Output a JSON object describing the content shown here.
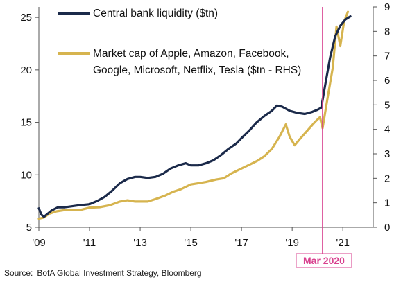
{
  "chart_data": {
    "type": "line",
    "x_axis": {
      "ticks": [
        "'09",
        "'11",
        "'13",
        "'15",
        "'17",
        "'19",
        "'21"
      ],
      "tick_years": [
        2009,
        2011,
        2013,
        2015,
        2017,
        2019,
        2021
      ],
      "range": [
        2009.0,
        2022.2
      ]
    },
    "y_left": {
      "ticks": [
        "5",
        "10",
        "15",
        "20",
        "25"
      ],
      "tick_values": [
        5,
        10,
        15,
        20,
        25
      ],
      "range": [
        5,
        26
      ]
    },
    "y_right": {
      "ticks": [
        "0",
        "1",
        "2",
        "3",
        "4",
        "5",
        "6",
        "7",
        "8",
        "9"
      ],
      "tick_values": [
        0,
        1,
        2,
        3,
        4,
        5,
        6,
        7,
        8,
        9
      ],
      "range": [
        0,
        9
      ]
    },
    "legend_lines": [
      "Central bank liquidity ($tn)",
      "Market cap of Apple, Amazon, Facebook,",
      "Google, Microsoft, Netflix, Tesla ($tn - RHS)"
    ],
    "series": [
      {
        "name": "Central bank liquidity ($tn)",
        "axis": "left",
        "color": "#1b2a4a",
        "x": [
          2009.0,
          2009.1,
          2009.2,
          2009.3,
          2009.5,
          2009.75,
          2010.0,
          2010.3,
          2010.6,
          2011.0,
          2011.3,
          2011.6,
          2011.9,
          2012.2,
          2012.5,
          2012.8,
          2013.0,
          2013.3,
          2013.6,
          2013.9,
          2014.2,
          2014.5,
          2014.8,
          2015.0,
          2015.3,
          2015.6,
          2015.9,
          2016.2,
          2016.5,
          2016.8,
          2017.0,
          2017.3,
          2017.6,
          2017.9,
          2018.2,
          2018.4,
          2018.6,
          2018.9,
          2019.2,
          2019.5,
          2019.8,
          2020.0,
          2020.15,
          2020.3,
          2020.5,
          2020.7,
          2020.9,
          2021.1,
          2021.3
        ],
        "values": [
          6.8,
          6.2,
          6.0,
          6.2,
          6.6,
          6.9,
          6.9,
          7.0,
          7.1,
          7.2,
          7.5,
          7.9,
          8.5,
          9.2,
          9.6,
          9.8,
          9.8,
          9.7,
          9.8,
          10.1,
          10.6,
          10.9,
          11.1,
          10.9,
          10.9,
          11.1,
          11.4,
          11.9,
          12.5,
          13.0,
          13.5,
          14.2,
          15.0,
          15.6,
          16.1,
          16.6,
          16.5,
          16.1,
          15.9,
          15.8,
          16.0,
          16.2,
          16.4,
          18.5,
          21.2,
          23.2,
          24.2,
          24.8,
          25.1
        ]
      },
      {
        "name": "Market cap of Apple, Amazon, Facebook, Google, Microsoft, Netflix, Tesla ($tn - RHS)",
        "axis": "right",
        "color": "#d6b44f",
        "x": [
          2009.0,
          2009.2,
          2009.4,
          2009.7,
          2010.0,
          2010.3,
          2010.6,
          2011.0,
          2011.4,
          2011.8,
          2012.2,
          2012.5,
          2012.8,
          2013.0,
          2013.3,
          2013.6,
          2014.0,
          2014.3,
          2014.6,
          2015.0,
          2015.3,
          2015.6,
          2016.0,
          2016.3,
          2016.6,
          2017.0,
          2017.3,
          2017.6,
          2017.9,
          2018.2,
          2018.5,
          2018.75,
          2018.9,
          2019.1,
          2019.3,
          2019.6,
          2019.9,
          2020.1,
          2020.2,
          2020.4,
          2020.6,
          2020.75,
          2020.9,
          2021.05,
          2021.2
        ],
        "values": [
          0.35,
          0.4,
          0.55,
          0.65,
          0.7,
          0.72,
          0.7,
          0.8,
          0.82,
          0.9,
          1.05,
          1.1,
          1.05,
          1.05,
          1.05,
          1.15,
          1.3,
          1.45,
          1.55,
          1.75,
          1.8,
          1.85,
          1.95,
          2.0,
          2.2,
          2.4,
          2.55,
          2.7,
          2.9,
          3.2,
          3.7,
          4.2,
          3.7,
          3.35,
          3.6,
          3.95,
          4.3,
          4.5,
          4.05,
          5.3,
          6.5,
          8.2,
          7.4,
          8.4,
          8.8
        ]
      }
    ],
    "annotation": {
      "label": "Mar 2020",
      "x": 2020.2,
      "color": "#d8418f"
    }
  },
  "source": {
    "prefix": "Source:",
    "text": "BofA Global Investment Strategy, Bloomberg"
  }
}
